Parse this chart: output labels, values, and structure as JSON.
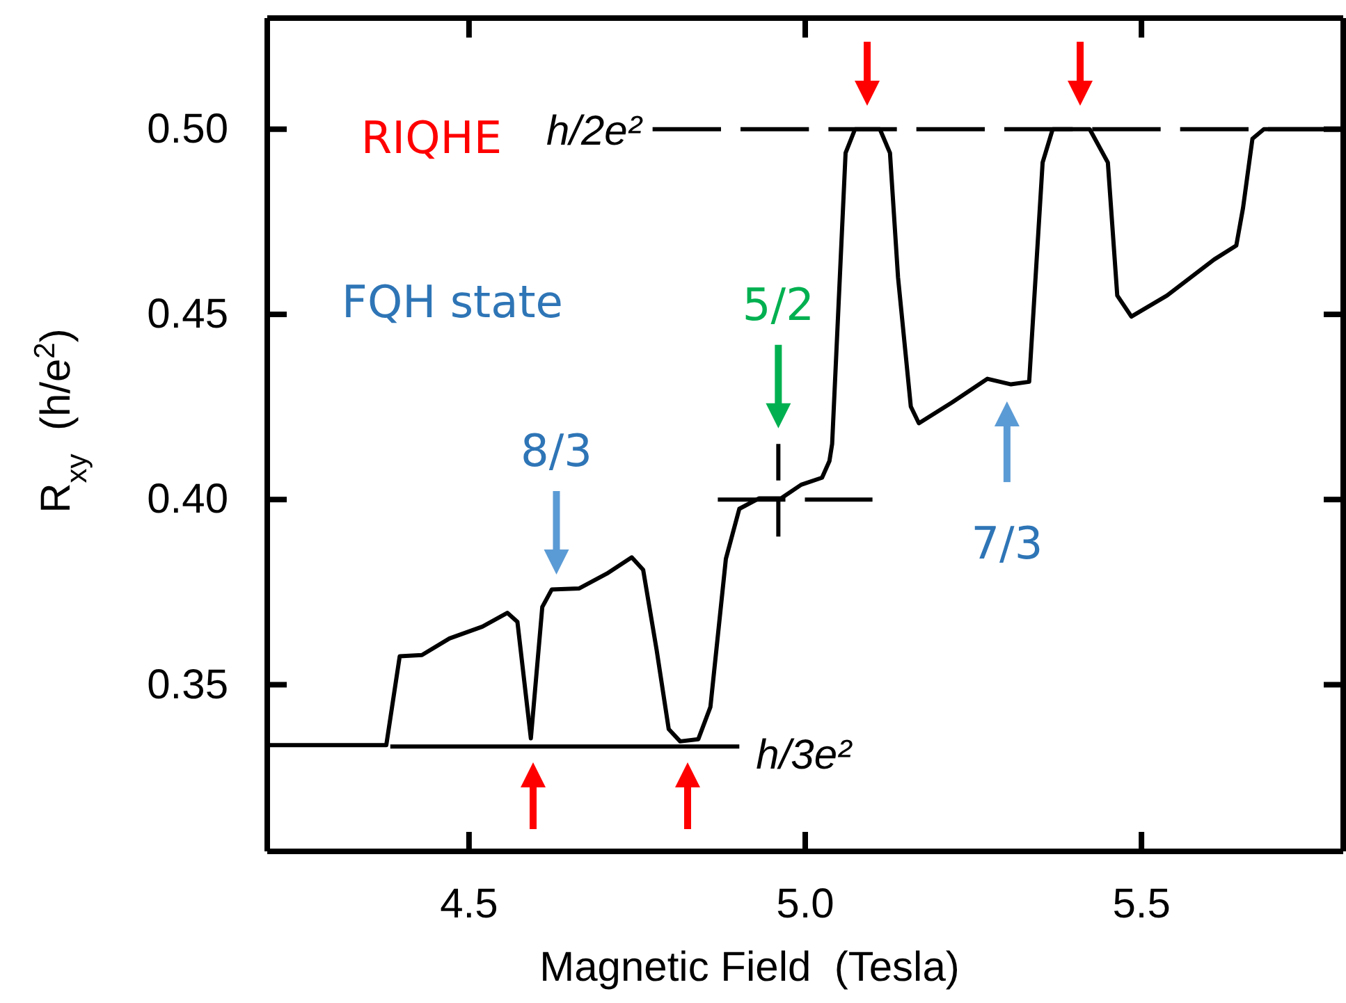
{
  "chart_data": {
    "type": "line",
    "xlabel": "Magnetic Field  (Tesla)",
    "ylabel": "R$_{xy}$  (h/e$^{2}$)",
    "xlim": [
      4.2,
      5.8
    ],
    "ylim": [
      0.305,
      0.53
    ],
    "xticks": [
      4.5,
      {
        "value": 5,
        "label": "5.0"
      },
      5.5
    ],
    "yticks": [
      {
        "value": 0.35,
        "label": "0.35"
      },
      {
        "value": 0.4,
        "label": "0.40"
      },
      {
        "value": 0.45,
        "label": "0.45"
      },
      {
        "value": 0.5,
        "label": "0.50"
      }
    ],
    "grid": false,
    "legend": false,
    "series": [
      {
        "color": "#000000",
        "line_style": "solid",
        "x": [
          4.2,
          4.377,
          4.397,
          4.43,
          4.471,
          4.52,
          4.557,
          4.572,
          4.592,
          4.609,
          4.623,
          4.664,
          4.705,
          4.742,
          4.759,
          4.779,
          4.797,
          4.814,
          4.841,
          4.859,
          4.882,
          4.902,
          4.931,
          4.964,
          4.994,
          5.025,
          5.036,
          5.04,
          5.06,
          5.074,
          5.111,
          5.126,
          5.138,
          5.157,
          5.169,
          5.218,
          5.271,
          5.306,
          5.333,
          5.353,
          5.368,
          5.423,
          5.45,
          5.464,
          5.485,
          5.538,
          5.608,
          5.641,
          5.651,
          5.665,
          5.682,
          5.79
        ],
        "values": [
          0.3337,
          0.3337,
          0.3577,
          0.358,
          0.3625,
          0.3657,
          0.3694,
          0.367,
          0.3355,
          0.371,
          0.3757,
          0.376,
          0.38,
          0.3844,
          0.381,
          0.3594,
          0.338,
          0.3347,
          0.3353,
          0.344,
          0.384,
          0.3975,
          0.4003,
          0.4003,
          0.404,
          0.4059,
          0.4104,
          0.415,
          0.4936,
          0.5,
          0.5,
          0.4936,
          0.46,
          0.4251,
          0.4206,
          0.4262,
          0.4326,
          0.4311,
          0.4318,
          0.491,
          0.5,
          0.5,
          0.491,
          0.4551,
          0.4494,
          0.4551,
          0.4648,
          0.4686,
          0.4787,
          0.4974,
          0.5,
          0.5
        ]
      },
      {
        "name": "h/2e²",
        "color": "#000000",
        "line_style": "dashed",
        "x": [
          4.773,
          5.79
        ],
        "values": [
          0.5,
          0.5
        ]
      },
      {
        "name": "h/3e²",
        "color": "#000000",
        "line_style": "solid",
        "x": [
          4.383,
          4.902
        ],
        "values": [
          0.3333,
          0.3333
        ]
      },
      {
        "color": "#000000",
        "line_style": "dashed",
        "x": [
          4.87,
          5.1
        ],
        "values": [
          0.4,
          0.4
        ]
      },
      {
        "color": "#000000",
        "line_style": "dashed",
        "x": [
          4.96,
          4.96
        ],
        "values": [
          0.39,
          0.415
        ]
      }
    ],
    "annotations": [
      "RIQHE",
      "FQH state",
      {
        "text": "8/3",
        "x": 4.63,
        "y": 0.376
      },
      {
        "text": "5/2",
        "x": 4.96,
        "y": 0.4155
      },
      {
        "text": "7/3",
        "x": 5.3,
        "y": 0.431
      }
    ]
  }
}
